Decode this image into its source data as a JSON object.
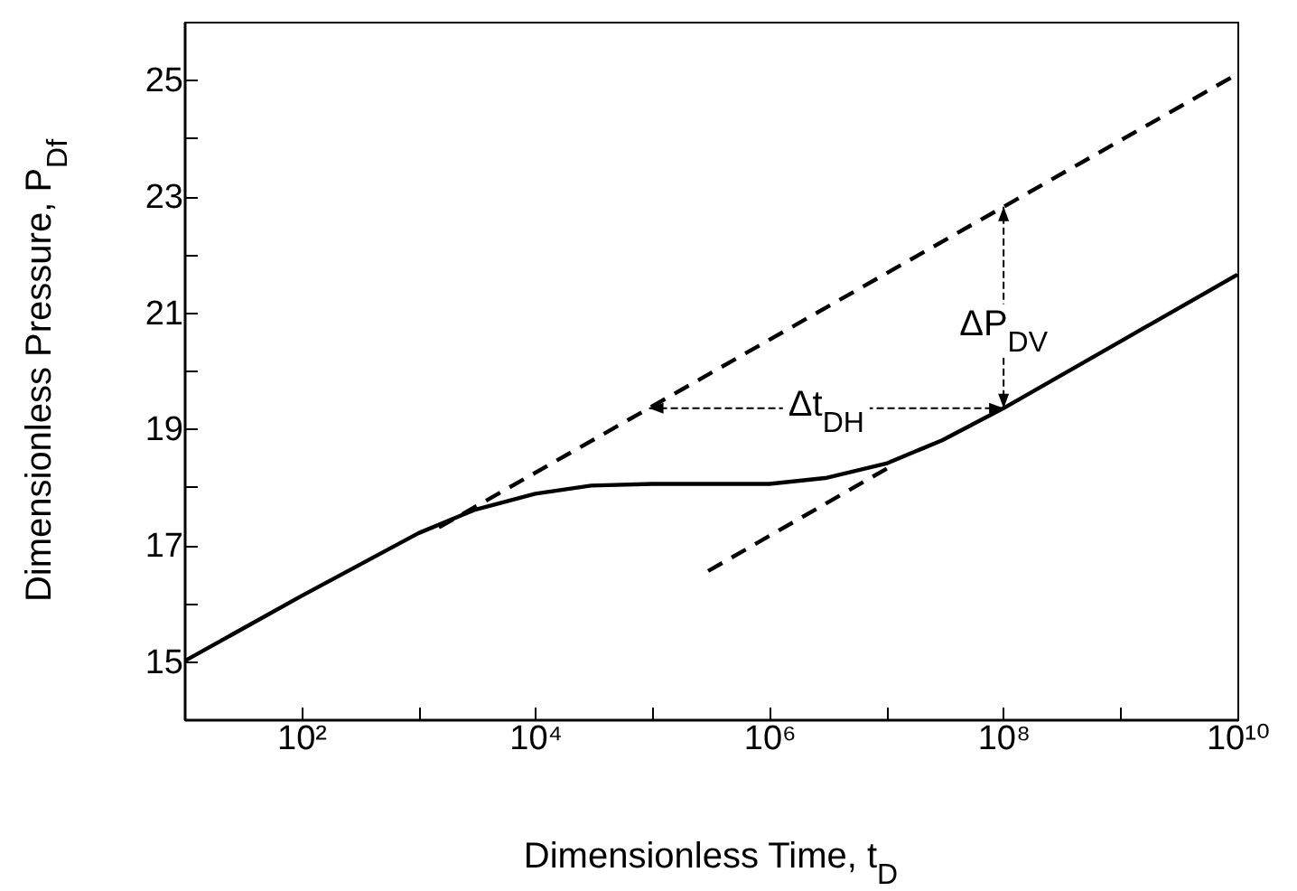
{
  "chart_data": {
    "type": "line",
    "xlabel": "Dimensionless Time, t$_{D}$",
    "ylabel": "Dimensionless Pressure, P$_{Df}$",
    "log": "x",
    "xlim": [
      10,
      10000000000
    ],
    "ylim": [
      14,
      26
    ],
    "xticks": [
      {
        "value": 10,
        "label": null
      },
      {
        "value": 100,
        "label": "10²"
      },
      {
        "value": 1000,
        "label": null
      },
      {
        "value": 10000,
        "label": "10⁴"
      },
      {
        "value": 100000,
        "label": null
      },
      {
        "value": 1000000,
        "label": "10⁶"
      },
      {
        "value": 10000000,
        "label": null
      },
      {
        "value": 100000000,
        "label": "10⁸"
      },
      {
        "value": 1000000000,
        "label": null
      },
      {
        "value": 10000000000,
        "label": "10¹⁰"
      }
    ],
    "yticks": [
      15,
      {
        "value": 16,
        "label": null
      },
      17,
      {
        "value": 18,
        "label": null
      },
      19,
      {
        "value": 20,
        "label": null
      },
      21,
      {
        "value": 22,
        "label": null
      },
      23,
      {
        "value": 24,
        "label": null
      },
      25
    ],
    "grid": false,
    "series": [
      {
        "color": "#000000",
        "line_style": "solid",
        "x": [
          10,
          100,
          1000,
          3000,
          10000,
          30000,
          100000,
          1000000,
          3000000,
          10000000,
          30000000,
          100000000,
          1000000000,
          10000000000
        ],
        "values": [
          15,
          16.12,
          17.2,
          17.6,
          17.88,
          18.02,
          18.05,
          18.05,
          18.15,
          18.4,
          18.8,
          19.35,
          20.5,
          21.65
        ]
      },
      {
        "color": "#000000",
        "line_style": "dashed",
        "x": [
          1500,
          10000000000
        ],
        "values": [
          17.3,
          25.1
        ]
      },
      {
        "color": "#000000",
        "line_style": "dashed",
        "x": [
          300000,
          12000000
        ],
        "values": [
          16.55,
          18.4
        ]
      }
    ],
    "annotations": [
      "ΔP$_{DV}$",
      "Δt$_{DH}$"
    ]
  }
}
